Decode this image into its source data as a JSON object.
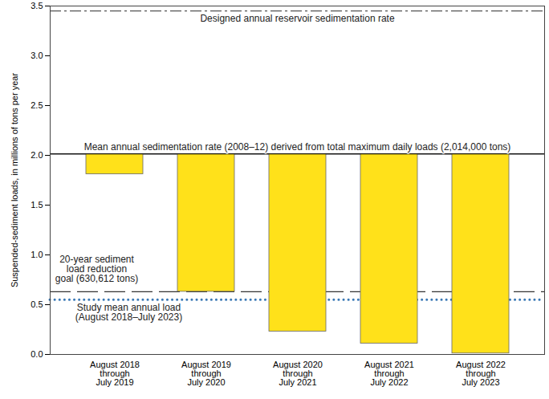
{
  "chart_data": {
    "type": "bar",
    "y_label": "Suspended-sediment loads, in millions of tons per year",
    "categories": [
      "August 2018\nthrough\nJuly 2019",
      "August 2019\nthrough\nJuly 2020",
      "August 2020\nthrough\nJuly 2021",
      "August 2021\nthrough\nJuly 2022",
      "August 2022\nthrough\nJuly 2023"
    ],
    "values": [
      1.81,
      0.63,
      0.23,
      0.11,
      0.01
    ],
    "bars_from": 2.014,
    "color": "#ffe11a",
    "ylim": [
      0,
      3.5
    ],
    "yticks": [
      0,
      0.5,
      1,
      1.5,
      2,
      2.5,
      3,
      3.5
    ],
    "grid": false,
    "reference_lines": [
      {
        "text": "Designed annual reservoir sedimentation rate",
        "value": 3.45,
        "line_style": "dashdot",
        "color": "#555555"
      },
      {
        "text": "Mean annual sedimentation rate (2008–12) derived from total maximum daily loads (2,014,000 tons)",
        "value": 2.014,
        "line_style": "solid",
        "color": "#000000"
      },
      {
        "text": "20-year sediment\nload reduction\ngoal (630,612 tons)",
        "value": 0.630612,
        "line_style": "dashed",
        "color": "#333333"
      },
      {
        "text": "Study mean annual load\n(August 2018–July 2023)",
        "value": 0.55,
        "line_style": "dotted",
        "color": "#3a78b5"
      }
    ]
  }
}
